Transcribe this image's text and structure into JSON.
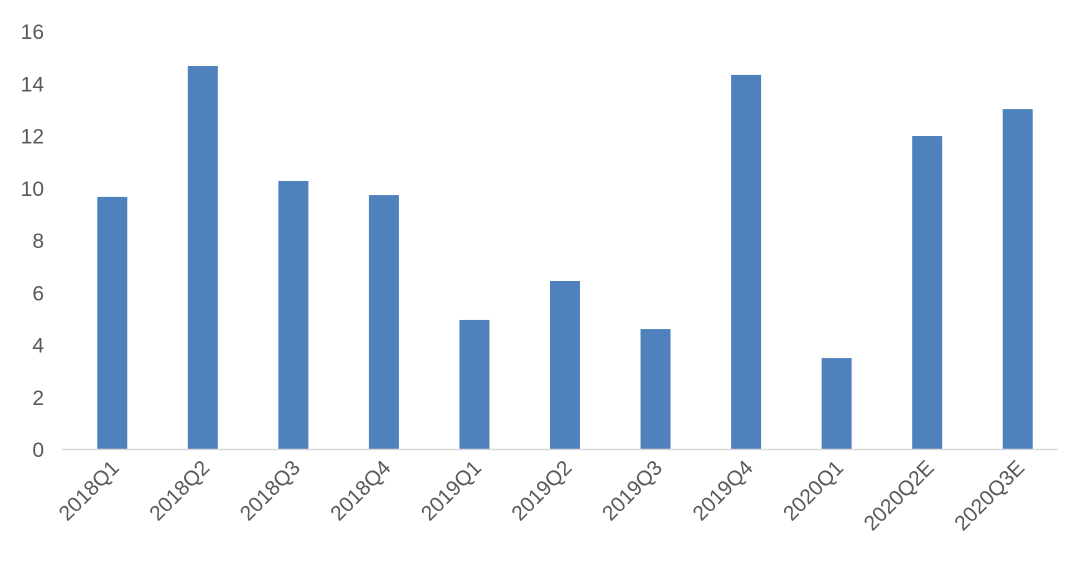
{
  "chart_data": {
    "type": "bar",
    "title": "",
    "xlabel": "",
    "ylabel": "",
    "categories": [
      "2018Q1",
      "2018Q2",
      "2018Q3",
      "2018Q4",
      "2019Q1",
      "2019Q2",
      "2019Q3",
      "2019Q4",
      "2020Q1",
      "2020Q2E",
      "2020Q3E"
    ],
    "values": [
      9.65,
      14.66,
      10.26,
      9.72,
      4.94,
      6.43,
      4.59,
      14.32,
      3.48,
      11.98,
      13.01
    ],
    "ylim": [
      0,
      16
    ],
    "yticks": [
      0,
      2,
      4,
      6,
      8,
      10,
      12,
      14,
      16
    ],
    "grid": false,
    "legend": "none",
    "bar_color": "#4f81bd",
    "axis_color": "#d9d9d9"
  }
}
